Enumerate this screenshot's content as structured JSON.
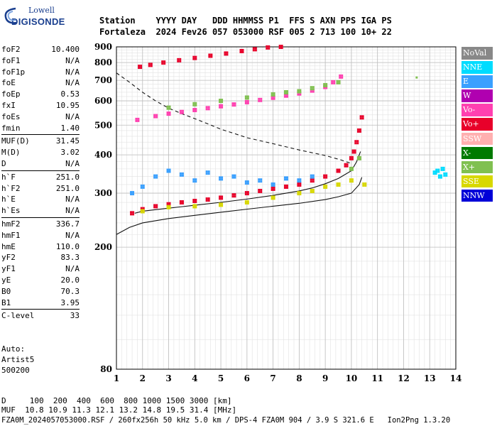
{
  "logo": {
    "top": "Lowell",
    "main": "DIGISONDE"
  },
  "header": {
    "line1": "Station    YYYY DAY   DDD HHMMSS P1  FFS S AXN PPS IGA PS",
    "line2": "Fortaleza  2024 Fev26 057 053000 RSF 005 2 713 100 10+ 22"
  },
  "params": [
    [
      {
        "label": "foF2",
        "value": "10.400"
      },
      {
        "label": "foF1",
        "value": "N/A"
      },
      {
        "label": "foF1p",
        "value": "N/A"
      },
      {
        "label": "foE",
        "value": "N/A"
      },
      {
        "label": "foEp",
        "value": "0.53"
      },
      {
        "label": "fxI",
        "value": "10.95"
      },
      {
        "label": "foEs",
        "value": "N/A"
      },
      {
        "label": "fmin",
        "value": "1.40"
      }
    ],
    [
      {
        "label": "MUF(D)",
        "value": "31.45"
      },
      {
        "label": "M(D)",
        "value": "3.02"
      },
      {
        "label": "D",
        "value": "N/A"
      }
    ],
    [
      {
        "label": "h`F",
        "value": "251.0"
      },
      {
        "label": "h`F2",
        "value": "251.0"
      },
      {
        "label": "h`E",
        "value": "N/A"
      },
      {
        "label": "h`Es",
        "value": "N/A"
      }
    ],
    [
      {
        "label": "hmF2",
        "value": "336.7"
      },
      {
        "label": "hmF1",
        "value": "N/A"
      },
      {
        "label": "hmE",
        "value": "110.0"
      },
      {
        "label": "yF2",
        "value": "83.3"
      },
      {
        "label": "yF1",
        "value": "N/A"
      },
      {
        "label": "yE",
        "value": "20.0"
      },
      {
        "label": "B0",
        "value": "70.3"
      },
      {
        "label": "B1",
        "value": "3.95"
      }
    ],
    [
      {
        "label": "C-level",
        "value": "33"
      }
    ]
  ],
  "auto": {
    "line1": "Auto:",
    "line2": "Artist5",
    "line3": "500200"
  },
  "legend": [
    {
      "label": "NoVal",
      "color": "#888888",
      "text_color": "#ffffff"
    },
    {
      "label": "NNE",
      "color": "#00dcff",
      "text_color": "#ffffff"
    },
    {
      "label": "E",
      "color": "#3aa0ff",
      "text_color": "#ffffff"
    },
    {
      "label": "W",
      "color": "#b000b0",
      "text_color": "#ffffff"
    },
    {
      "label": "Vo-",
      "color": "#ff40b0",
      "text_color": "#ffffff"
    },
    {
      "label": "Vo+",
      "color": "#e8002a",
      "text_color": "#ffffff"
    },
    {
      "label": "SSW",
      "color": "#ffb0b0",
      "text_color": "#ffffff"
    },
    {
      "label": "X-",
      "color": "#007a00",
      "text_color": "#ffffff"
    },
    {
      "label": "X+",
      "color": "#80c050",
      "text_color": "#ffffff"
    },
    {
      "label": "SSE",
      "color": "#d8d800",
      "text_color": "#ffffff"
    },
    {
      "label": "NNW",
      "color": "#0000d8",
      "text_color": "#ffffff"
    }
  ],
  "bottom": {
    "line1": "D     100  200  400  600  800 1000 1500 3000 [km]",
    "line2": "MUF  10.8 10.9 11.3 12.1 13.2 14.8 19.5 31.4 [MHz]",
    "line3": "FZA0M_2024057053000.RSF / 260fx256h 50 kHz 5.0 km / DPS-4 FZA0M 904 / 3.9 S 321.6 E   Ion2Png 1.3.20"
  },
  "chart_data": {
    "type": "scatter",
    "xlim": [
      1,
      14
    ],
    "ylim": [
      80,
      900
    ],
    "yscale": "log",
    "x_ticks": [
      1,
      2,
      3,
      4,
      5,
      6,
      7,
      8,
      9,
      10,
      11,
      12,
      13,
      14
    ],
    "y_ticks": [
      80,
      200,
      300,
      400,
      500,
      600,
      700,
      800,
      900
    ],
    "grid": true,
    "series": [
      {
        "name": "Vo+",
        "color": "#e8002a",
        "x": [
          1.6,
          2.0,
          2.5,
          3.0,
          3.5,
          4.0,
          4.5,
          5.0,
          5.5,
          6.0,
          6.5,
          7.0,
          7.5,
          8.0,
          8.5,
          9.0,
          9.5,
          9.8,
          10.0,
          10.1,
          10.2,
          10.3,
          10.4
        ],
        "y": [
          258,
          266,
          272,
          276,
          280,
          283,
          286,
          290,
          295,
          300,
          305,
          310,
          315,
          320,
          330,
          340,
          355,
          370,
          390,
          410,
          440,
          480,
          530
        ]
      },
      {
        "name": "Vo- (2nd hop)",
        "color": "#ff40b0",
        "x": [
          1.8,
          2.5,
          3.0,
          3.5,
          4.0,
          4.5,
          5.0,
          5.5,
          6.0,
          6.5,
          7.0,
          7.5,
          8.0,
          8.5,
          9.0,
          9.3,
          9.6
        ],
        "y": [
          520,
          535,
          545,
          552,
          560,
          568,
          576,
          584,
          594,
          604,
          614,
          624,
          634,
          648,
          666,
          690,
          720
        ]
      },
      {
        "name": "Vo+ (3rd hop)",
        "color": "#e8002a",
        "x": [
          1.9,
          2.3,
          2.8,
          3.4,
          4.0,
          4.6,
          5.2,
          5.8,
          6.3,
          6.8,
          7.3
        ],
        "y": [
          775,
          786,
          800,
          814,
          828,
          842,
          856,
          872,
          884,
          896,
          900
        ]
      },
      {
        "name": "E",
        "color": "#3aa0ff",
        "x": [
          1.6,
          2.0,
          2.5,
          3.0,
          3.5,
          4.0,
          4.5,
          5.0,
          5.5,
          6.0,
          6.5,
          7.0,
          7.5,
          8.0,
          8.5
        ],
        "y": [
          300,
          315,
          340,
          355,
          345,
          330,
          350,
          335,
          340,
          325,
          330,
          320,
          335,
          330,
          340
        ]
      },
      {
        "name": "X+",
        "color": "#80c050",
        "x": [
          3.0,
          4.0,
          5.0,
          6.0,
          7.0,
          7.5,
          8.0,
          8.5,
          9.0,
          9.5,
          10.0,
          10.3
        ],
        "y": [
          570,
          585,
          600,
          615,
          630,
          640,
          645,
          660,
          675,
          690,
          360,
          390
        ]
      },
      {
        "name": "SSE",
        "color": "#d8d800",
        "x": [
          2.0,
          3.0,
          4.0,
          5.0,
          6.0,
          7.0,
          8.0,
          8.5,
          9.0,
          9.5,
          10.0,
          10.5
        ],
        "y": [
          262,
          270,
          272,
          275,
          280,
          290,
          300,
          305,
          315,
          320,
          330,
          320
        ]
      },
      {
        "name": "NNE",
        "color": "#00dcff",
        "x": [
          13.2,
          13.3,
          13.4,
          13.5,
          13.6
        ],
        "y": [
          350,
          355,
          340,
          360,
          345
        ]
      }
    ],
    "lines": [
      {
        "name": "profile",
        "style": "solid",
        "x": [
          1.0,
          1.5,
          2.0,
          3.0,
          4.0,
          5.0,
          6.0,
          7.0,
          8.0,
          9.0,
          9.5,
          10.0,
          10.3,
          10.4
        ],
        "y": [
          220,
          232,
          240,
          248,
          254,
          260,
          266,
          272,
          278,
          286,
          292,
          300,
          320,
          338
        ]
      },
      {
        "name": "virtual height",
        "style": "solid",
        "x": [
          1.7,
          2.0,
          3.0,
          4.0,
          5.0,
          6.0,
          7.0,
          8.0,
          8.5,
          9.0,
          9.5,
          10.0,
          10.2,
          10.35
        ],
        "y": [
          258,
          262,
          268,
          274,
          280,
          287,
          295,
          305,
          312,
          322,
          335,
          355,
          380,
          410
        ]
      },
      {
        "name": "MUF curve",
        "style": "dashed",
        "x": [
          1.0,
          1.5,
          2.0,
          2.5,
          3.0,
          3.5,
          4.0,
          4.5,
          5.0,
          5.5,
          6.0,
          7.0,
          8.0,
          9.0,
          9.6,
          10.0
        ],
        "y": [
          740,
          690,
          640,
          600,
          568,
          545,
          525,
          505,
          485,
          470,
          455,
          435,
          415,
          398,
          385,
          375
        ]
      }
    ],
    "extra_dots": [
      {
        "x": 12.5,
        "y": 715,
        "color": "#80c050"
      }
    ]
  }
}
